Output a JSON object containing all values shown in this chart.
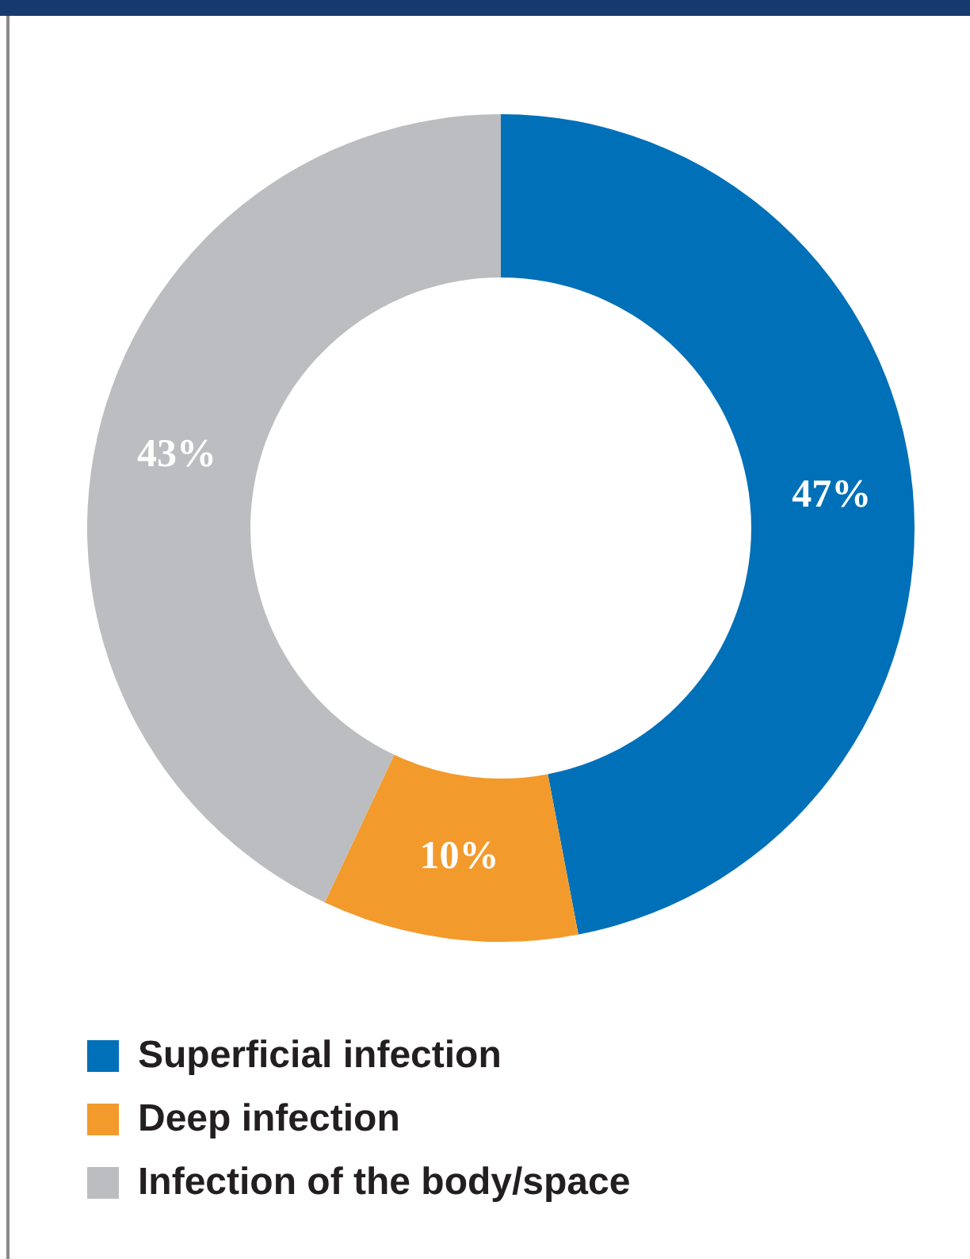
{
  "chart_data": {
    "type": "donut",
    "categories": [
      "Superficial infection",
      "Deep infection",
      "Infection of the body/space"
    ],
    "values": [
      47,
      10,
      43
    ],
    "colors": [
      "#0070b8",
      "#f39a2c",
      "#bcbdc0"
    ],
    "value_labels": [
      "47%",
      "10%",
      "43%"
    ],
    "legend": "bottom left"
  }
}
